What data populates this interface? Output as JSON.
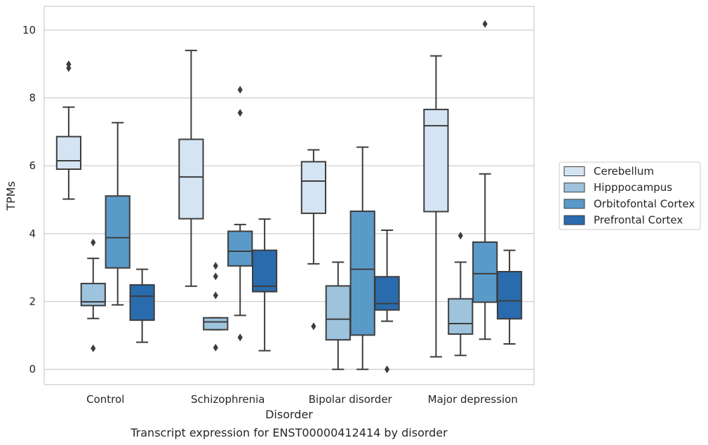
{
  "chart_data": {
    "type": "boxplot",
    "title": "",
    "caption": "Transcript expression for ENST00000412414 by disorder",
    "xlabel": "Disorder",
    "ylabel": "TPMs",
    "ylim": [
      -0.45,
      10.7
    ],
    "yticks": [
      0,
      2,
      4,
      6,
      8,
      10
    ],
    "grid": "horizontal",
    "legend_position": "right",
    "categories": [
      "Control",
      "Schizophrenia",
      "Bipolar disorder",
      "Major depression"
    ],
    "series": [
      {
        "name": "Cerebellum",
        "color": "#d5e4f3",
        "boxes": [
          {
            "whisker_low": 5.02,
            "q1": 5.9,
            "median": 6.15,
            "q3": 6.86,
            "whisker_high": 7.73,
            "outliers": [
              8.88,
              8.99
            ]
          },
          {
            "whisker_low": 2.45,
            "q1": 4.44,
            "median": 5.67,
            "q3": 6.78,
            "whisker_high": 9.4,
            "outliers": []
          },
          {
            "whisker_low": 3.11,
            "q1": 4.6,
            "median": 5.55,
            "q3": 6.12,
            "whisker_high": 6.47,
            "outliers": [
              1.27
            ]
          },
          {
            "whisker_low": 0.37,
            "q1": 4.65,
            "median": 7.18,
            "q3": 7.66,
            "whisker_high": 9.24,
            "outliers": []
          }
        ]
      },
      {
        "name": "Hipppocampus",
        "color": "#9dc3dd",
        "boxes": [
          {
            "whisker_low": 1.5,
            "q1": 1.88,
            "median": 1.99,
            "q3": 2.53,
            "whisker_high": 3.27,
            "outliers": [
              0.62,
              3.74
            ]
          },
          {
            "whisker_low": 1.17,
            "q1": 1.17,
            "median": 1.4,
            "q3": 1.52,
            "whisker_high": 1.52,
            "outliers": [
              0.64,
              2.18,
              2.74,
              3.05
            ]
          },
          {
            "whisker_low": 0.0,
            "q1": 0.87,
            "median": 1.48,
            "q3": 2.46,
            "whisker_high": 3.16,
            "outliers": []
          },
          {
            "whisker_low": 0.41,
            "q1": 1.04,
            "median": 1.35,
            "q3": 2.08,
            "whisker_high": 3.16,
            "outliers": [
              3.94
            ]
          }
        ]
      },
      {
        "name": "Orbitofontal Cortex",
        "color": "#5a9ac9",
        "boxes": [
          {
            "whisker_low": 1.9,
            "q1": 2.99,
            "median": 3.88,
            "q3": 5.11,
            "whisker_high": 7.27,
            "outliers": []
          },
          {
            "whisker_low": 1.59,
            "q1": 3.05,
            "median": 3.48,
            "q3": 4.07,
            "whisker_high": 4.27,
            "outliers": [
              0.94,
              7.56,
              8.24
            ]
          },
          {
            "whisker_low": 0.0,
            "q1": 1.01,
            "median": 2.95,
            "q3": 4.66,
            "whisker_high": 6.55,
            "outliers": []
          },
          {
            "whisker_low": 0.89,
            "q1": 1.98,
            "median": 2.82,
            "q3": 3.75,
            "whisker_high": 5.76,
            "outliers": [
              10.18
            ]
          }
        ]
      },
      {
        "name": "Prefrontal Cortex",
        "color": "#2a6bad",
        "boxes": [
          {
            "whisker_low": 0.8,
            "q1": 1.45,
            "median": 2.16,
            "q3": 2.49,
            "whisker_high": 2.95,
            "outliers": []
          },
          {
            "whisker_low": 0.55,
            "q1": 2.29,
            "median": 2.45,
            "q3": 3.51,
            "whisker_high": 4.43,
            "outliers": []
          },
          {
            "whisker_low": 1.42,
            "q1": 1.75,
            "median": 1.94,
            "q3": 2.73,
            "whisker_high": 4.1,
            "outliers": [
              0.0
            ]
          },
          {
            "whisker_low": 0.75,
            "q1": 1.49,
            "median": 2.02,
            "q3": 2.88,
            "whisker_high": 3.51,
            "outliers": []
          }
        ]
      }
    ]
  }
}
